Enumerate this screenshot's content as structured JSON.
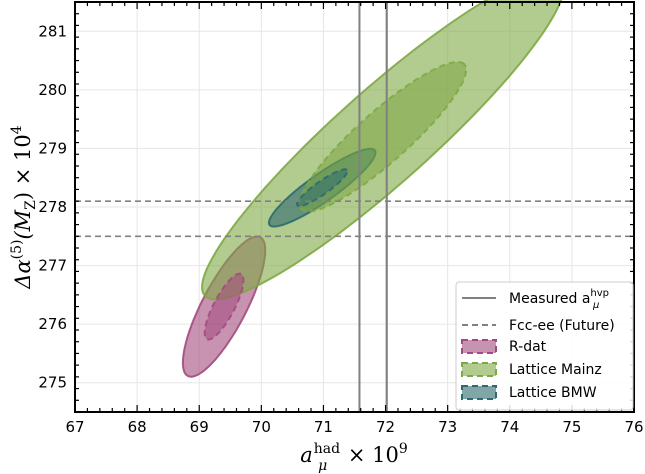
{
  "chart_data": {
    "type": "scatter",
    "title": "",
    "xlabel": {
      "main": "a",
      "sub": "μ",
      "sup": "had",
      "rest": " × 10",
      "exp": "9"
    },
    "ylabel": {
      "main": "Δα",
      "sup": "(5)",
      "mid": "(M",
      "sub": "Z",
      "rest": ") × 10",
      "exp": "4"
    },
    "xlim": [
      67,
      76
    ],
    "ylim": [
      274.5,
      281.5
    ],
    "xticks": [
      67,
      68,
      69,
      70,
      71,
      72,
      73,
      74,
      75,
      76
    ],
    "yticks": [
      275,
      276,
      277,
      278,
      279,
      280,
      281
    ],
    "grid": true,
    "legend_position": "bottom-right",
    "reference_lines": {
      "measured_vertical_x": [
        71.58,
        72.02
      ],
      "fccee_horizontal_y": [
        277.5,
        278.1
      ]
    },
    "series": [
      {
        "name": "R-dat",
        "color": "#a24b7d",
        "center": [
          69.4,
          276.3
        ],
        "outer": {
          "rx": 1.32,
          "ry": 0.36,
          "angle_deg": 64
        },
        "inner": {
          "rx": 0.62,
          "ry": 0.17,
          "angle_deg": 64
        }
      },
      {
        "name": "Lattice Mainz",
        "color": "#7ea844",
        "center": [
          71.96,
          279.2
        ],
        "outer": {
          "rx": 3.95,
          "ry": 0.78,
          "angle_deg": 43.5
        },
        "inner": {
          "rx": 1.8,
          "ry": 0.42,
          "angle_deg": 43.5
        }
      },
      {
        "name": "Lattice BMW",
        "color": "#2e6b6e",
        "center": [
          70.98,
          278.33
        ],
        "outer": {
          "rx": 1.06,
          "ry": 0.23,
          "angle_deg": 37
        },
        "inner": {
          "rx": 0.5,
          "ry": 0.11,
          "angle_deg": 37
        }
      }
    ],
    "legend": [
      {
        "label": "Measured a",
        "label_sub": "μ",
        "label_sup": "hvp",
        "style": "solid-line"
      },
      {
        "label": "Fcc-ee (Future)",
        "style": "dashed-line"
      },
      {
        "label": "R-dat",
        "style": "patch",
        "color": "#a24b7d"
      },
      {
        "label": "Lattice Mainz",
        "style": "patch",
        "color": "#7ea844"
      },
      {
        "label": "Lattice BMW",
        "style": "patch",
        "color": "#2e6b6e"
      }
    ]
  }
}
